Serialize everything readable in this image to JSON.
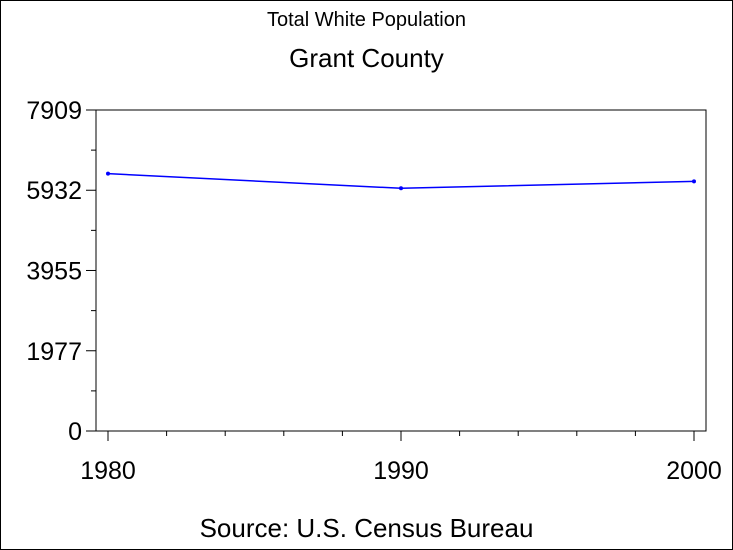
{
  "title": "Total White Population",
  "subtitle": "Grant County",
  "source": "Source: U.S. Census Bureau",
  "colors": {
    "line": "#0000ff",
    "axis": "#000000",
    "background": "#ffffff"
  },
  "chart_data": {
    "type": "line",
    "title": "Total White Population",
    "subtitle": "Grant County",
    "xlabel": "",
    "ylabel": "",
    "x": [
      1980,
      1990,
      2000
    ],
    "series": [
      {
        "values": [
          6340,
          5980,
          6150
        ]
      }
    ],
    "xlim": [
      1980,
      2000
    ],
    "ylim": [
      0,
      7909
    ],
    "xticks": [
      1980,
      1990,
      2000
    ],
    "xtick_labels": [
      "1980",
      "1990",
      "2000"
    ],
    "yticks": [
      0,
      1977,
      3955,
      5932,
      7909
    ],
    "ytick_labels": [
      "0",
      "1977",
      "3955",
      "5932",
      "7909"
    ],
    "grid": false,
    "legend": "none"
  }
}
